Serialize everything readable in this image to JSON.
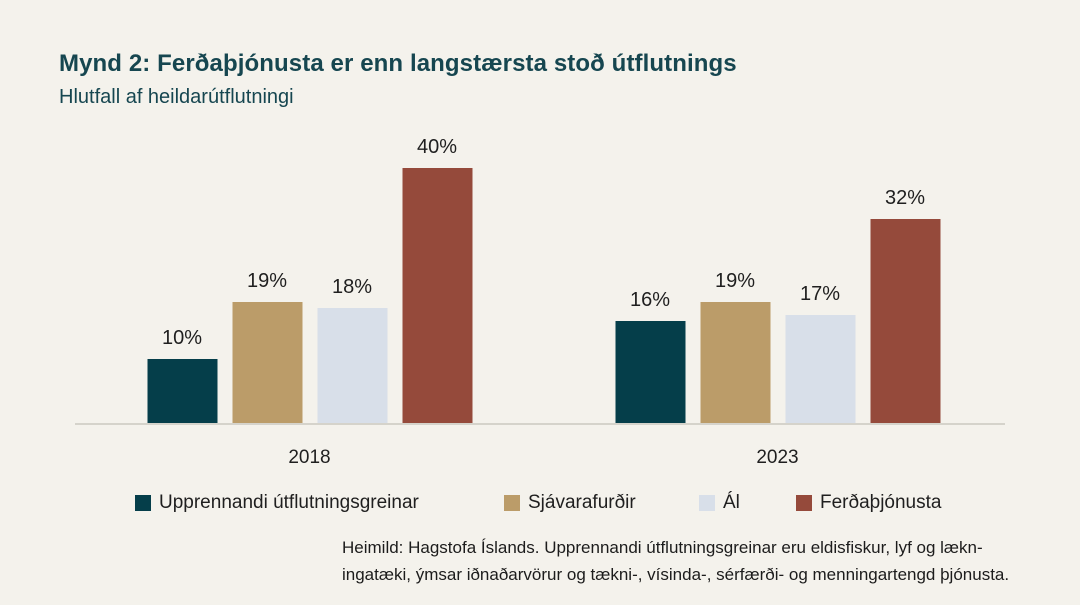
{
  "header": {
    "title": "Mynd 2: Ferðaþjónusta er enn langstærsta stoð útflutnings",
    "subtitle": "Hlutfall af heildarútflutningi"
  },
  "chart_data": {
    "type": "bar",
    "categories": [
      "2018",
      "2023"
    ],
    "series": [
      {
        "id": "upprennandi-utflutningsgreinar",
        "name": "Upprennandi útflutningsgreinar",
        "color": "#053e4a",
        "values": [
          10,
          16
        ]
      },
      {
        "id": "sjavarafurdir",
        "name": "Sjávarafurðir",
        "color": "#bb9c69",
        "values": [
          19,
          19
        ]
      },
      {
        "id": "al",
        "name": "Ál",
        "color": "#d8dfe9",
        "values": [
          18,
          17
        ]
      },
      {
        "id": "ferdathjonusta",
        "name": "Ferðaþjónusta",
        "color": "#954a3b",
        "values": [
          40,
          32
        ]
      }
    ],
    "value_labels": [
      [
        "10%",
        "19%",
        "18%",
        "40%"
      ],
      [
        "16%",
        "19%",
        "17%",
        "32%"
      ]
    ],
    "unit": "%",
    "ylim": [
      0,
      42
    ],
    "grid": false,
    "legend_position": "bottom"
  },
  "footnote": {
    "line1": "Heimild: Hagstofa Íslands. Upprennandi útflutningsgreinar eru eldisfiskur, lyf og lækn-",
    "line2": "ingatæki, ýmsar iðnaðarvörur og tækni-, vísinda-, sérfærði- og menningartengd þjónusta."
  },
  "colors": {
    "background": "#f4f2ec",
    "heading": "#164650",
    "axis": "#d5d3cb",
    "label": "#1f1f1f"
  }
}
